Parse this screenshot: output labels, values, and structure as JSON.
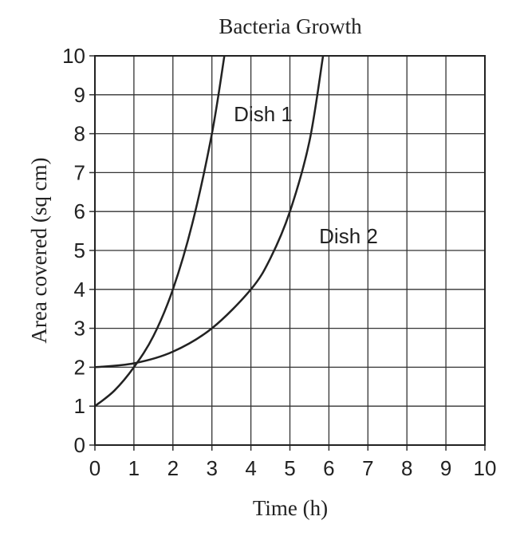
{
  "chart_data": {
    "type": "line",
    "title": "Bacteria Growth",
    "x_label": "Time (h)",
    "y_label": "Area covered (sq cm)",
    "xlim": [
      0,
      10
    ],
    "ylim": [
      0,
      10
    ],
    "xticks": [
      0,
      1,
      2,
      3,
      4,
      5,
      6,
      7,
      8,
      9,
      10
    ],
    "yticks": [
      0,
      1,
      2,
      3,
      4,
      5,
      6,
      7,
      8,
      9,
      10
    ],
    "grid": true,
    "series": [
      {
        "name": "Dish 1",
        "color": "#222222",
        "x": [
          0,
          0.5,
          1,
          1.5,
          2,
          2.5,
          3,
          3.32
        ],
        "values": [
          1,
          1.4,
          2,
          2.8,
          4,
          5.7,
          8,
          10
        ]
      },
      {
        "name": "Dish 2",
        "color": "#222222",
        "x": [
          0,
          1,
          2,
          3,
          4,
          4.5,
          5,
          5.5,
          5.85
        ],
        "values": [
          2,
          2.1,
          2.4,
          3,
          4,
          4.8,
          6,
          7.8,
          10
        ]
      }
    ]
  }
}
